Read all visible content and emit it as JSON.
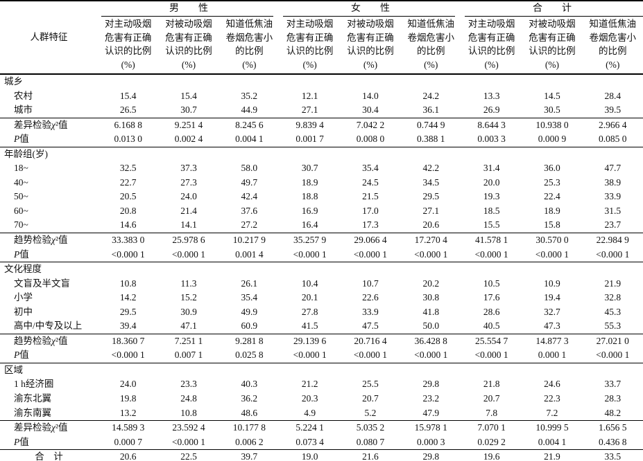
{
  "table": {
    "corner_label": "人群特征",
    "groups": [
      {
        "label": "男　　性"
      },
      {
        "label": "女　　性"
      },
      {
        "label": "合　　计"
      }
    ],
    "columns": [
      {
        "group": "男性",
        "lines": [
          "对主动吸烟",
          "危害有正确",
          "认识的比例",
          "(%)"
        ]
      },
      {
        "group": "男性",
        "lines": [
          "对被动吸烟",
          "危害有正确",
          "认识的比例",
          "(%)"
        ]
      },
      {
        "group": "男性",
        "lines": [
          "知道低焦油",
          "卷烟危害小",
          "的比例",
          "(%)"
        ]
      },
      {
        "group": "女性",
        "lines": [
          "对主动吸烟",
          "危害有正确",
          "认识的比例",
          "(%)"
        ]
      },
      {
        "group": "女性",
        "lines": [
          "对被动吸烟",
          "危害有正确",
          "认识的比例",
          "(%)"
        ]
      },
      {
        "group": "女性",
        "lines": [
          "知道低焦油",
          "卷烟危害小",
          "的比例",
          "(%)"
        ]
      },
      {
        "group": "合计",
        "lines": [
          "对主动吸烟",
          "危害有正确",
          "认识的比例",
          "(%)"
        ]
      },
      {
        "group": "合计",
        "lines": [
          "对被动吸烟",
          "危害有正确",
          "认识的比例",
          "(%)"
        ]
      },
      {
        "group": "合计",
        "lines": [
          "知道低焦油",
          "卷烟危害小",
          "的比例",
          "(%)"
        ]
      }
    ],
    "rows": [
      {
        "type": "section",
        "label": "城乡"
      },
      {
        "type": "data",
        "label": "农村",
        "values": [
          "15.4",
          "15.4",
          "35.2",
          "12.1",
          "14.0",
          "24.2",
          "13.3",
          "14.5",
          "28.4"
        ]
      },
      {
        "type": "data",
        "label": "城市",
        "values": [
          "26.5",
          "30.7",
          "44.9",
          "27.1",
          "30.4",
          "36.1",
          "26.9",
          "30.5",
          "39.5"
        ]
      },
      {
        "type": "stat",
        "label": "差异检验χ²值",
        "values": [
          "6.168 8",
          "9.251 4",
          "8.245 6",
          "9.839 4",
          "7.042 2",
          "0.744 9",
          "8.644 3",
          "10.938 0",
          "2.966 4"
        ]
      },
      {
        "type": "data",
        "label": "P值",
        "values": [
          "0.013 0",
          "0.002 4",
          "0.004 1",
          "0.001 7",
          "0.008 0",
          "0.388 1",
          "0.003 3",
          "0.000 9",
          "0.085 0"
        ]
      },
      {
        "type": "section",
        "label": "年龄组(岁)"
      },
      {
        "type": "data",
        "label": "18~",
        "values": [
          "32.5",
          "37.3",
          "58.0",
          "30.7",
          "35.4",
          "42.2",
          "31.4",
          "36.0",
          "47.7"
        ]
      },
      {
        "type": "data",
        "label": "40~",
        "values": [
          "22.7",
          "27.3",
          "49.7",
          "18.9",
          "24.5",
          "34.5",
          "20.0",
          "25.3",
          "38.9"
        ]
      },
      {
        "type": "data",
        "label": "50~",
        "values": [
          "20.5",
          "24.0",
          "42.4",
          "18.8",
          "21.5",
          "29.5",
          "19.3",
          "22.4",
          "33.9"
        ]
      },
      {
        "type": "data",
        "label": "60~",
        "values": [
          "20.8",
          "21.4",
          "37.6",
          "16.9",
          "17.0",
          "27.1",
          "18.5",
          "18.9",
          "31.5"
        ]
      },
      {
        "type": "data",
        "label": "70~",
        "values": [
          "14.6",
          "14.1",
          "27.2",
          "16.4",
          "17.3",
          "20.6",
          "15.5",
          "15.8",
          "23.7"
        ]
      },
      {
        "type": "stat",
        "label": "趋势检验χ²值",
        "values": [
          "33.383 0",
          "25.978 6",
          "10.217 9",
          "35.257 9",
          "29.066 4",
          "17.270 4",
          "41.578 1",
          "30.570 0",
          "22.984 9"
        ]
      },
      {
        "type": "data",
        "label": "P值",
        "values": [
          "<0.000 1",
          "<0.000 1",
          "0.001 4",
          "<0.000 1",
          "<0.000 1",
          "<0.000 1",
          "<0.000 1",
          "<0.000 1",
          "<0.000 1"
        ]
      },
      {
        "type": "section",
        "label": "文化程度"
      },
      {
        "type": "data",
        "label": "文盲及半文盲",
        "values": [
          "10.8",
          "11.3",
          "26.1",
          "10.4",
          "10.7",
          "20.2",
          "10.5",
          "10.9",
          "21.9"
        ]
      },
      {
        "type": "data",
        "label": "小学",
        "values": [
          "14.2",
          "15.2",
          "35.4",
          "20.1",
          "22.6",
          "30.8",
          "17.6",
          "19.4",
          "32.8"
        ]
      },
      {
        "type": "data",
        "label": "初中",
        "values": [
          "29.5",
          "30.9",
          "49.9",
          "27.8",
          "33.9",
          "41.8",
          "28.6",
          "32.7",
          "45.3"
        ]
      },
      {
        "type": "data",
        "label": "高中/中专及以上",
        "values": [
          "39.4",
          "47.1",
          "60.9",
          "41.5",
          "47.5",
          "50.0",
          "40.5",
          "47.3",
          "55.3"
        ]
      },
      {
        "type": "stat",
        "label": "趋势检验χ²值",
        "values": [
          "18.360 7",
          "7.251 1",
          "9.281 8",
          "29.139 6",
          "20.716 4",
          "36.428 8",
          "25.554 7",
          "14.877 3",
          "27.021 0"
        ]
      },
      {
        "type": "data",
        "label": "P值",
        "values": [
          "<0.000 1",
          "0.007 1",
          "0.025 8",
          "<0.000 1",
          "<0.000 1",
          "<0.000 1",
          "<0.000 1",
          "0.000 1",
          "<0.000 1"
        ]
      },
      {
        "type": "section",
        "label": "区域"
      },
      {
        "type": "data",
        "label": "1 h经济圈",
        "values": [
          "24.0",
          "23.3",
          "40.3",
          "21.2",
          "25.5",
          "29.8",
          "21.8",
          "24.6",
          "33.7"
        ]
      },
      {
        "type": "data",
        "label": "渝东北翼",
        "values": [
          "19.8",
          "24.8",
          "36.2",
          "20.3",
          "20.7",
          "23.2",
          "20.7",
          "22.3",
          "28.3"
        ]
      },
      {
        "type": "data",
        "label": "渝东南翼",
        "values": [
          "13.2",
          "10.8",
          "48.6",
          "4.9",
          "5.2",
          "47.9",
          "7.8",
          "7.2",
          "48.2"
        ]
      },
      {
        "type": "stat",
        "label": "差异检验χ²值",
        "values": [
          "14.589 3",
          "23.592 4",
          "10.177 8",
          "5.224 1",
          "5.035 2",
          "15.978 1",
          "7.070 1",
          "10.999 5",
          "1.656 5"
        ]
      },
      {
        "type": "data",
        "label": "P值",
        "values": [
          "0.000 7",
          "<0.000 1",
          "0.006 2",
          "0.073 4",
          "0.080 7",
          "0.000 3",
          "0.029 2",
          "0.004 1",
          "0.436 8"
        ]
      },
      {
        "type": "total",
        "label": "合　计",
        "values": [
          "20.6",
          "22.5",
          "39.7",
          "19.0",
          "21.6",
          "29.8",
          "19.6",
          "21.9",
          "33.5"
        ]
      }
    ]
  }
}
